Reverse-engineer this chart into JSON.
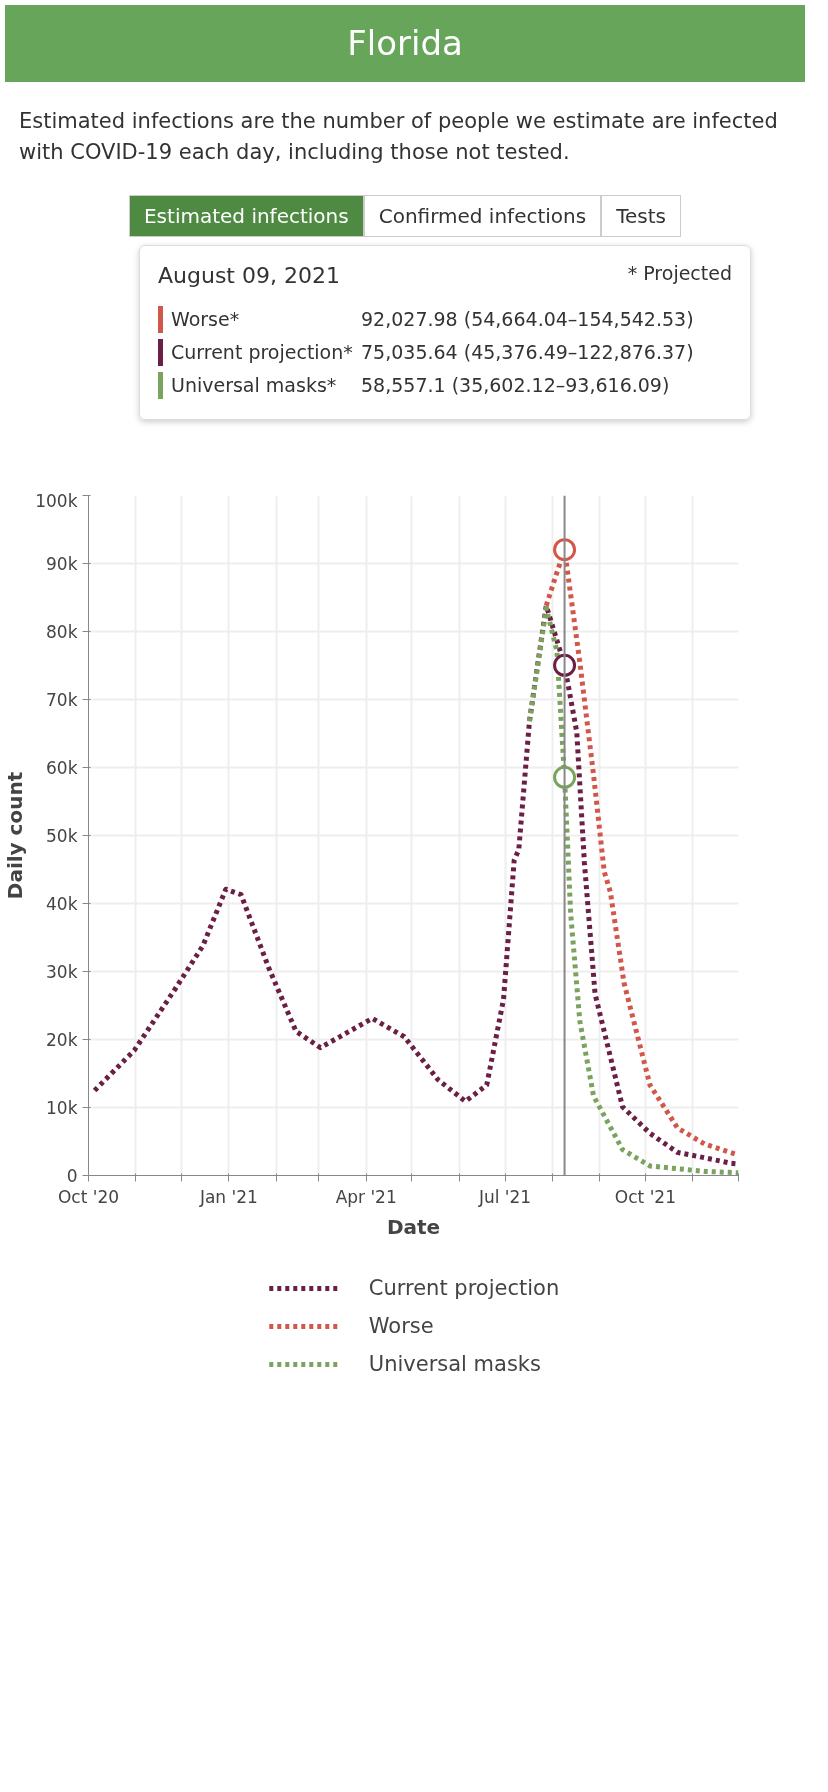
{
  "chart_data": {
    "type": "line",
    "title": "Florida",
    "subtitle": "Estimated infections are the number of people we estimate are infected with COVID-19 each day, including those not tested.",
    "annotations": [
      "Estimated infections",
      "Confirmed infections",
      "Tests",
      "August 09, 2021",
      "* Projected",
      "Worse*",
      "92,027.98 (54,664.04–154,542.53)",
      "Current projection*",
      "75,035.64 (45,376.49–122,876.37)",
      "Universal masks*",
      "58,557.1 (35,602.12–93,616.09)"
    ],
    "xlabel": "Date",
    "ylabel": "Daily count",
    "xlim": [
      "2020-10-01",
      "2021-12-01"
    ],
    "xticks": [
      {
        "value": "2020-10-01",
        "label": "Oct '20"
      },
      {
        "value": "2020-11-01",
        "label": null
      },
      {
        "value": "2020-12-01",
        "label": null
      },
      {
        "value": "2021-01-01",
        "label": "Jan '21"
      },
      {
        "value": "2021-02-01",
        "label": null
      },
      {
        "value": "2021-03-01",
        "label": null
      },
      {
        "value": "2021-04-01",
        "label": "Apr '21"
      },
      {
        "value": "2021-05-01",
        "label": null
      },
      {
        "value": "2021-06-01",
        "label": null
      },
      {
        "value": "2021-07-01",
        "label": "Jul '21"
      },
      {
        "value": "2021-08-01",
        "label": null
      },
      {
        "value": "2021-09-01",
        "label": null
      },
      {
        "value": "2021-10-01",
        "label": "Oct '21"
      },
      {
        "value": "2021-11-01",
        "label": null
      },
      {
        "value": "2021-12-01",
        "label": null
      }
    ],
    "ylim": [
      0,
      100000
    ],
    "yticks": [
      0,
      {
        "value": 10000,
        "label": "10k"
      },
      {
        "value": 20000,
        "label": "20k"
      },
      {
        "value": 30000,
        "label": "30k"
      },
      {
        "value": 40000,
        "label": "40k"
      },
      {
        "value": 50000,
        "label": "50k"
      },
      {
        "value": 60000,
        "label": "60k"
      },
      {
        "value": 70000,
        "label": "70k"
      },
      {
        "value": 80000,
        "label": "80k"
      },
      {
        "value": 90000,
        "label": "90k"
      },
      {
        "value": 100000,
        "label": "100k"
      }
    ],
    "grid": true,
    "legend": "bottom",
    "line_style": "dashed",
    "marker": "none",
    "ref_lines": [
      {
        "axis": "x",
        "value": "2021-08-09",
        "color": "#888888"
      }
    ],
    "series": [
      {
        "name": "Current projection",
        "color": "#6b1f45",
        "x": [
          "2020-10-05",
          "2020-10-31",
          "2020-11-27",
          "2020-12-15",
          "2020-12-30",
          "2021-01-09",
          "2021-01-27",
          "2021-02-14",
          "2021-03-02",
          "2021-04-05",
          "2021-04-26",
          "2021-05-18",
          "2021-06-05",
          "2021-06-19",
          "2021-06-30",
          "2021-07-07",
          "2021-07-10",
          "2021-07-17",
          "2021-07-28",
          "2021-08-09",
          "2021-08-17",
          "2021-08-22",
          "2021-08-29",
          "2021-09-16",
          "2021-10-04",
          "2021-10-22",
          "2021-11-09",
          "2021-11-26",
          "2021-12-01"
        ],
        "values": [
          12500,
          18400,
          27500,
          33800,
          42100,
          41300,
          30600,
          21200,
          18800,
          23100,
          20400,
          14100,
          10900,
          13300,
          25900,
          46400,
          47900,
          66800,
          83800,
          75035.64,
          65200,
          46000,
          26700,
          10100,
          6200,
          3400,
          2600,
          1800,
          1700
        ]
      },
      {
        "name": "Worse",
        "color": "#d2574b",
        "x": [
          "2021-07-28",
          "2021-08-03",
          "2021-08-09",
          "2021-08-19",
          "2021-08-28",
          "2021-09-04",
          "2021-09-08",
          "2021-09-17",
          "2021-10-04",
          "2021-10-22",
          "2021-11-09",
          "2021-12-01"
        ],
        "values": [
          83800,
          88000,
          92027.98,
          75500,
          58900,
          44700,
          41700,
          28300,
          13300,
          7000,
          4600,
          3000
        ]
      },
      {
        "name": "Universal masks",
        "color": "#7aa35d",
        "x": [
          "2021-07-17",
          "2021-07-28",
          "2021-08-04",
          "2021-08-09",
          "2021-08-13",
          "2021-08-19",
          "2021-08-28",
          "2021-09-16",
          "2021-10-04",
          "2021-11-09",
          "2021-12-01"
        ],
        "values": [
          66800,
          83400,
          77100,
          58557.1,
          38500,
          22700,
          11700,
          3800,
          1400,
          600,
          400
        ]
      },
      {
        "type": "scatter",
        "marker": "circle",
        "x": [
          "2021-08-09",
          "2021-08-09",
          "2021-08-09"
        ],
        "values": [
          92027.98,
          75035.64,
          58557.1
        ],
        "colors": [
          "#d2574b",
          "#6b1f45",
          "#7aa35d"
        ]
      }
    ]
  }
}
